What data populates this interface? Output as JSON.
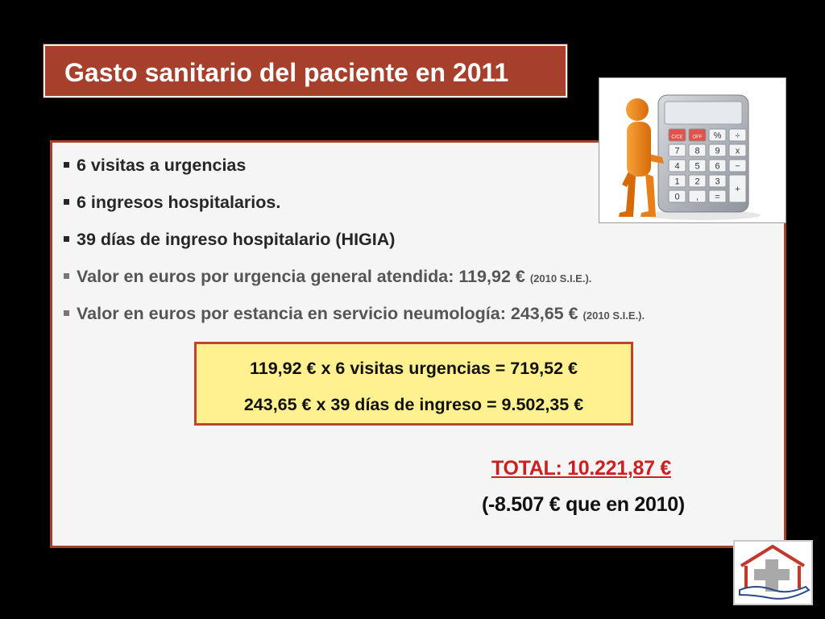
{
  "slide": {
    "title": "Gasto sanitario del paciente en 2011",
    "bullets": [
      {
        "text": "6 visitas a urgencias",
        "source": ""
      },
      {
        "text": "6 ingresos hospitalarios.",
        "source": ""
      },
      {
        "text": "39 días de ingreso hospitalario (HIGIA)",
        "source": ""
      },
      {
        "text": "Valor en euros por urgencia general atendida: 119,92 € ",
        "source": "(2010 S.I.E.)."
      },
      {
        "text": "Valor en euros por estancia en servicio neumología: 243,65 € ",
        "source": "(2010 S.I.E.)."
      }
    ],
    "calculation": {
      "line1": "119,92 € x 6 visitas urgencias = 719,52 €",
      "line2": "243,65 € x 39 días de ingreso = 9.502,35 €"
    },
    "total": "TOTAL:  10.221,87 €",
    "difference": "(-8.507 € que en 2010)",
    "calculator_keys": [
      [
        "C/CE",
        "OFF",
        "%",
        "÷"
      ],
      [
        "7",
        "8",
        "9",
        "x"
      ],
      [
        "4",
        "5",
        "6",
        "−"
      ],
      [
        "1",
        "2",
        "3",
        "+"
      ],
      [
        "0",
        ",",
        "="
      ]
    ]
  },
  "colors": {
    "background": "#000000",
    "title_fill": "#a6402c",
    "panel_fill": "#f5f5f5",
    "calc_box_fill": "#fff18f",
    "total_text": "#cc1f1f"
  },
  "icons": {
    "calculator_image": "person-with-calculator-illustration",
    "logo": "house-cross-hand-logo"
  }
}
